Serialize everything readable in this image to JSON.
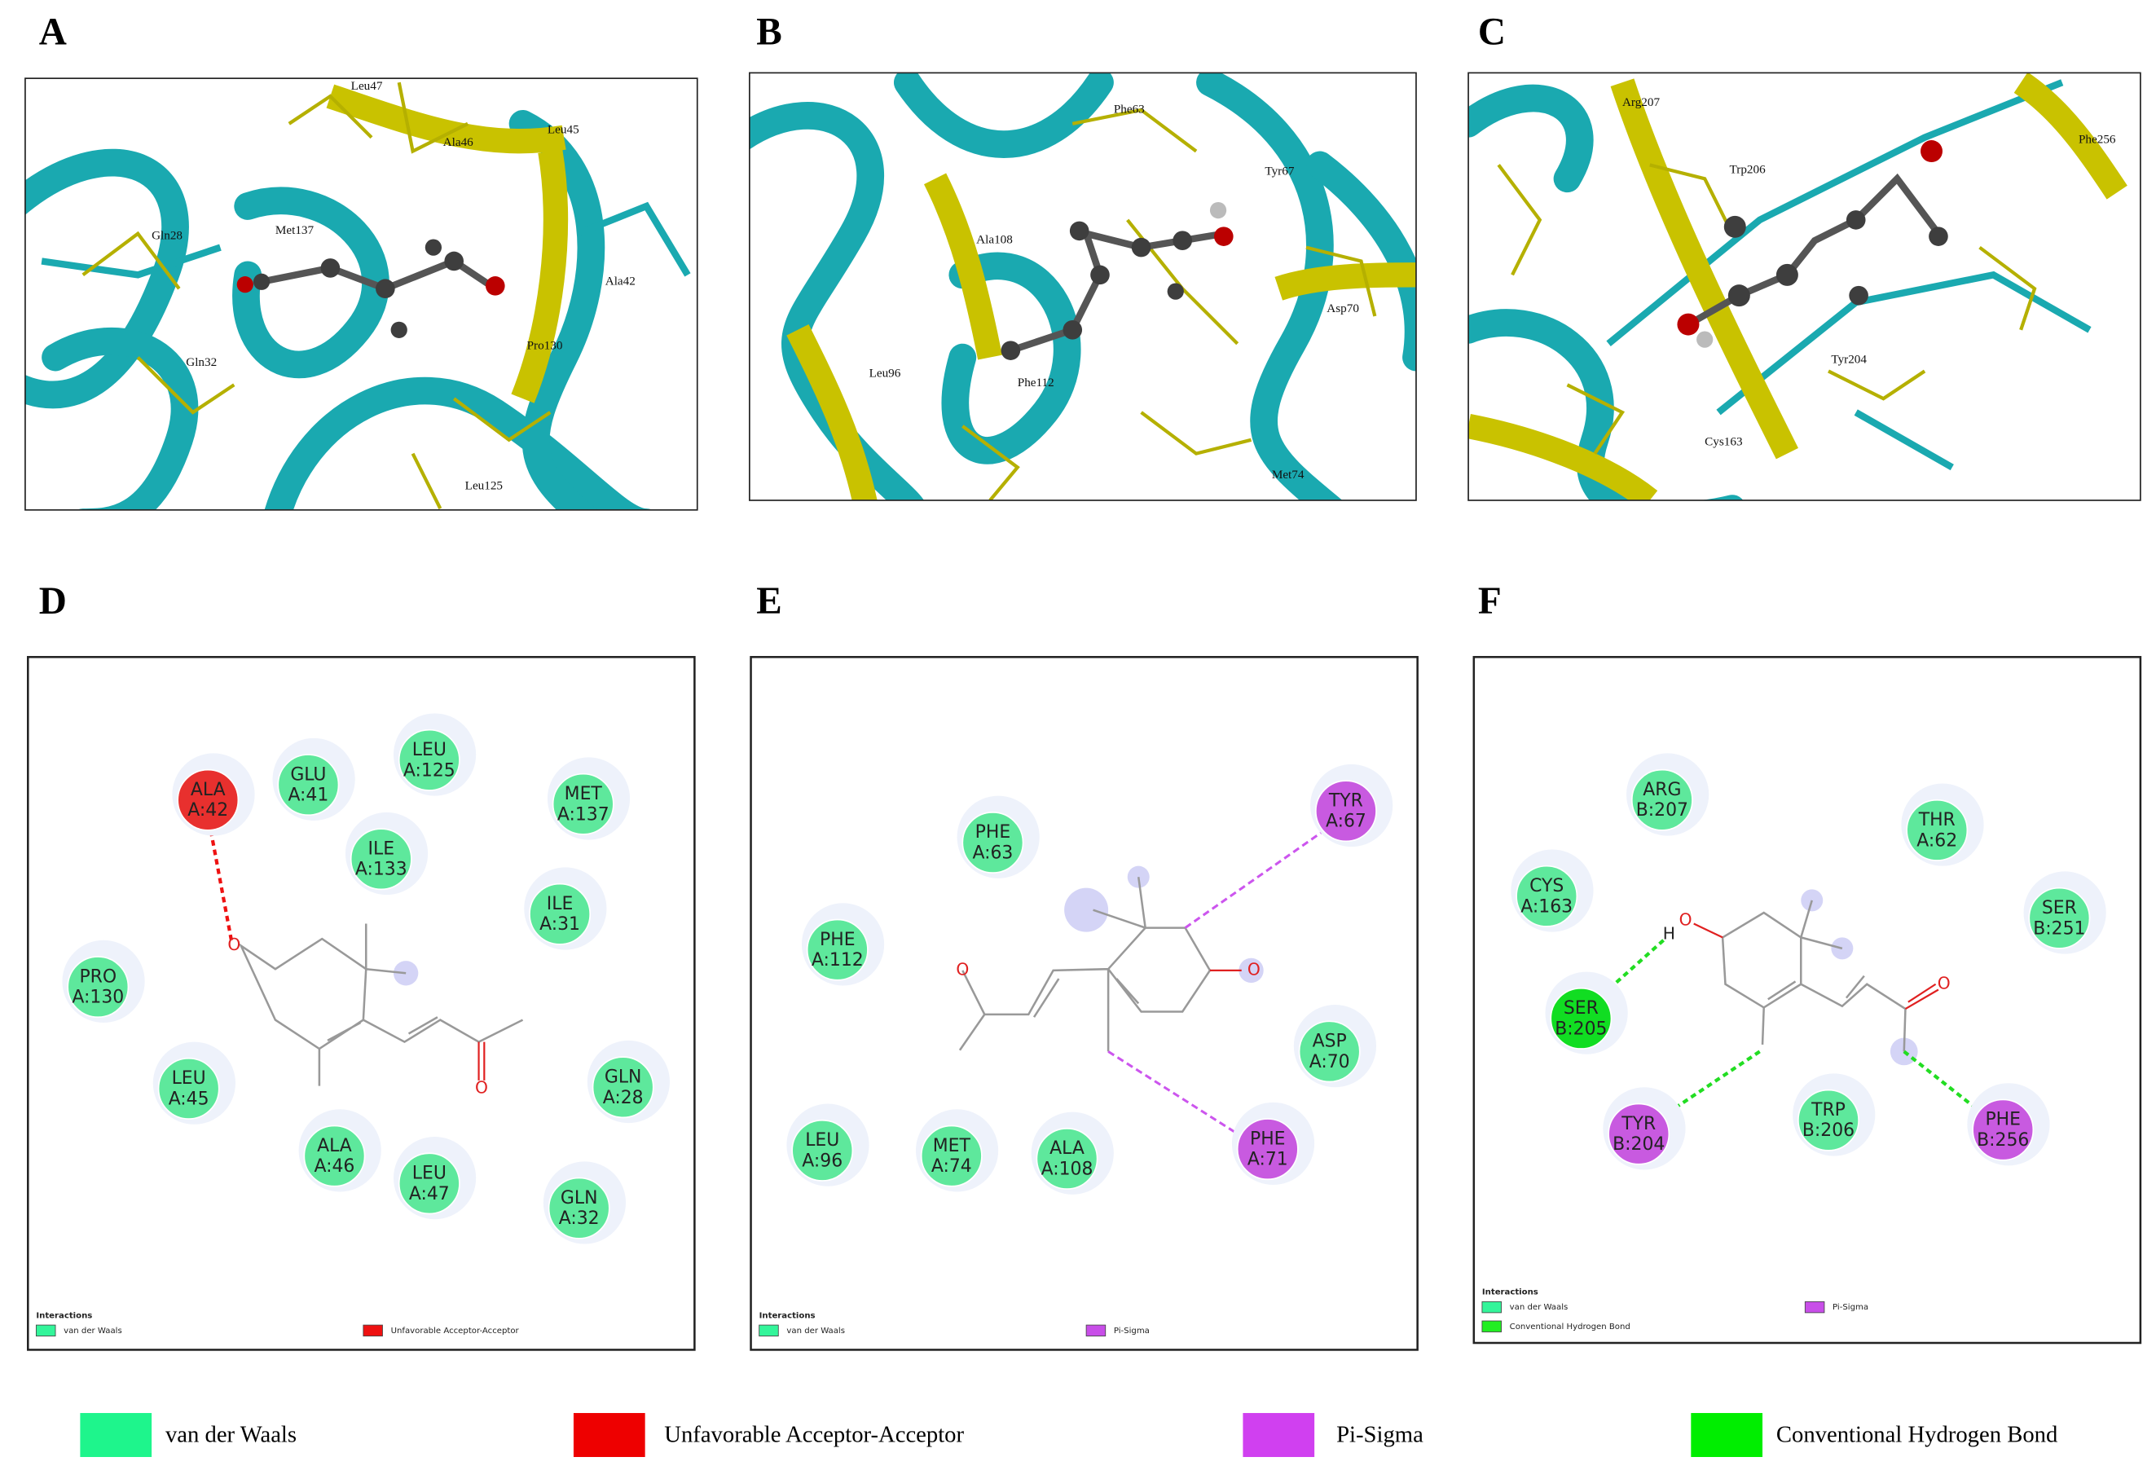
{
  "panels_3d": [
    {
      "letter": "A",
      "residues": [
        "Leu47",
        "Ala46",
        "Leu45",
        "Met137",
        "Gln28",
        "Ala42",
        "Pro130",
        "Gln32",
        "Leu125"
      ]
    },
    {
      "letter": "B",
      "residues": [
        "Phe63",
        "Tyr67",
        "Ala108",
        "Asp70",
        "Leu96",
        "Phe112",
        "Met74"
      ]
    },
    {
      "letter": "C",
      "residues": [
        "Arg207",
        "Trp206",
        "Phe256",
        "Tyr204",
        "Cys163"
      ]
    }
  ],
  "panels_2d": [
    {
      "letter": "D",
      "atoms": [
        "O",
        "O"
      ],
      "interactions_title": "Interactions",
      "residues": [
        {
          "name": "ALA",
          "id": "A:42",
          "color": "#e8302e"
        },
        {
          "name": "GLU",
          "id": "A:41",
          "color": "#5ee89c"
        },
        {
          "name": "LEU",
          "id": "A:125",
          "color": "#5ee89c"
        },
        {
          "name": "MET",
          "id": "A:137",
          "color": "#5ee89c"
        },
        {
          "name": "ILE",
          "id": "A:133",
          "color": "#5ee89c"
        },
        {
          "name": "ILE",
          "id": "A:31",
          "color": "#5ee89c"
        },
        {
          "name": "PRO",
          "id": "A:130",
          "color": "#5ee89c"
        },
        {
          "name": "LEU",
          "id": "A:45",
          "color": "#5ee89c"
        },
        {
          "name": "GLN",
          "id": "A:28",
          "color": "#5ee89c"
        },
        {
          "name": "ALA",
          "id": "A:46",
          "color": "#5ee89c"
        },
        {
          "name": "LEU",
          "id": "A:47",
          "color": "#5ee89c"
        },
        {
          "name": "GLN",
          "id": "A:32",
          "color": "#5ee89c"
        }
      ],
      "legend": [
        {
          "label": "van der Waals",
          "color": "#33f59a"
        },
        {
          "label": "Unfavorable Acceptor-Acceptor",
          "color": "#ee1111"
        }
      ]
    },
    {
      "letter": "E",
      "atoms": [
        "O",
        "O"
      ],
      "interactions_title": "Interactions",
      "residues": [
        {
          "name": "PHE",
          "id": "A:63",
          "color": "#5ee89c"
        },
        {
          "name": "TYR",
          "id": "A:67",
          "color": "#c85ae0"
        },
        {
          "name": "PHE",
          "id": "A:112",
          "color": "#5ee89c"
        },
        {
          "name": "ASP",
          "id": "A:70",
          "color": "#5ee89c"
        },
        {
          "name": "PHE",
          "id": "A:71",
          "color": "#c85ae0"
        },
        {
          "name": "LEU",
          "id": "A:96",
          "color": "#5ee89c"
        },
        {
          "name": "MET",
          "id": "A:74",
          "color": "#5ee89c"
        },
        {
          "name": "ALA",
          "id": "A:108",
          "color": "#5ee89c"
        }
      ],
      "legend": [
        {
          "label": "van der Waals",
          "color": "#33f59a"
        },
        {
          "label": "Pi-Sigma",
          "color": "#c84ee8"
        }
      ]
    },
    {
      "letter": "F",
      "atoms": [
        "O",
        "H",
        "O"
      ],
      "interactions_title": "Interactions",
      "residues": [
        {
          "name": "ARG",
          "id": "B:207",
          "color": "#5ee89c"
        },
        {
          "name": "THR",
          "id": "A:62",
          "color": "#5ee89c"
        },
        {
          "name": "CYS",
          "id": "A:163",
          "color": "#5ee89c"
        },
        {
          "name": "SER",
          "id": "B:251",
          "color": "#5ee89c"
        },
        {
          "name": "SER",
          "id": "B:205",
          "color": "#11dd22"
        },
        {
          "name": "TYR",
          "id": "B:204",
          "color": "#c85ae0"
        },
        {
          "name": "TRP",
          "id": "B:206",
          "color": "#5ee89c"
        },
        {
          "name": "PHE",
          "id": "B:256",
          "color": "#c85ae0"
        }
      ],
      "legend": [
        {
          "label": "van der Waals",
          "color": "#33f59a"
        },
        {
          "label": "Pi-Sigma",
          "color": "#c84ee8"
        },
        {
          "label": "Conventional Hydrogen Bond",
          "color": "#22ee22"
        }
      ]
    }
  ],
  "legend": [
    {
      "label": "van der Waals",
      "color": "#1ef58c"
    },
    {
      "label": "Unfavorable Acceptor-Acceptor",
      "color": "#ee0000"
    },
    {
      "label": "Pi-Sigma",
      "color": "#d040f0"
    },
    {
      "label": "Conventional Hydrogen Bond",
      "color": "#00ee00"
    }
  ]
}
